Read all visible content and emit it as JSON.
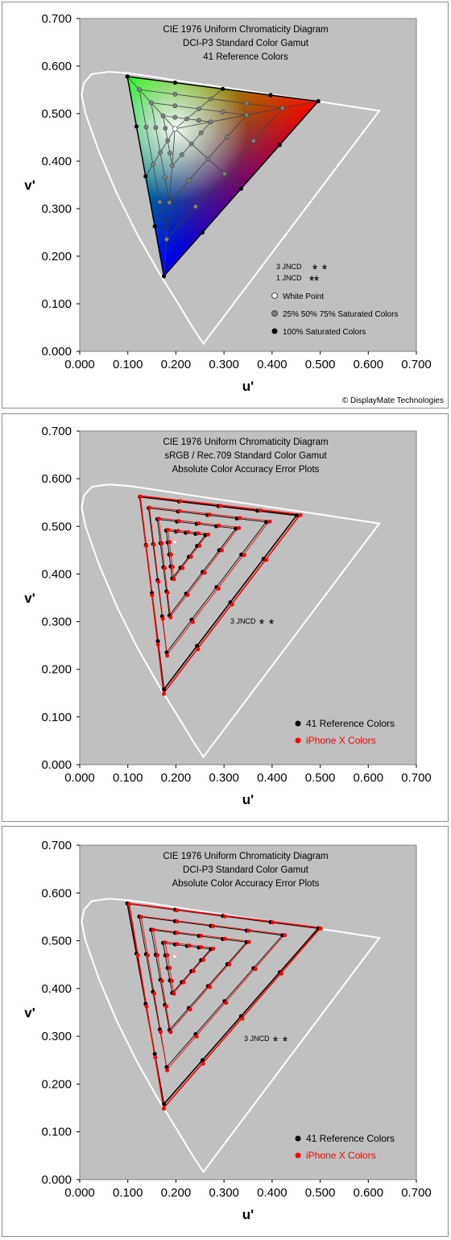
{
  "copyright": "© DisplayMate Technologies",
  "chart_data": [
    {
      "type": "scatter",
      "title": [
        "CIE 1976 Uniform Chromaticity Diagram",
        "DCI-P3 Standard Color Gamut",
        "41 Reference Colors"
      ],
      "xlabel": "u'",
      "ylabel": "v'",
      "xlim": [
        0,
        0.7
      ],
      "ylim": [
        0,
        0.7
      ],
      "xticks": [
        "0.000",
        "0.100",
        "0.200",
        "0.300",
        "0.400",
        "0.500",
        "0.600",
        "0.700"
      ],
      "yticks": [
        "0.000",
        "0.100",
        "0.200",
        "0.300",
        "0.400",
        "0.500",
        "0.600",
        "0.700"
      ],
      "legend": [
        "3 JNCD",
        "1 JNCD",
        "White Point",
        "25% 50% 75% Saturated Colors",
        "100% Saturated Colors"
      ],
      "gamut": {
        "red": [
          0.496,
          0.526
        ],
        "green": [
          0.099,
          0.578
        ],
        "blue": [
          0.175,
          0.158
        ],
        "white": [
          0.198,
          0.468
        ]
      },
      "colors": {
        "background": "#c0c0c0",
        "locus": "#ffffff"
      }
    },
    {
      "type": "scatter",
      "title": [
        "CIE 1976 Uniform Chromaticity Diagram",
        "sRGB / Rec.709 Standard Color Gamut",
        "Absolute Color Accuracy Error Plots"
      ],
      "xlabel": "u'",
      "ylabel": "v'",
      "xlim": [
        0,
        0.7
      ],
      "ylim": [
        0,
        0.7
      ],
      "xticks": [
        "0.000",
        "0.100",
        "0.200",
        "0.300",
        "0.400",
        "0.500",
        "0.600",
        "0.700"
      ],
      "yticks": [
        "0.000",
        "0.100",
        "0.200",
        "0.300",
        "0.400",
        "0.500",
        "0.600",
        "0.700"
      ],
      "annotation": "3 JNCD",
      "legend": [
        "41 Reference Colors",
        "iPhone X Colors"
      ],
      "reference": {
        "red": [
          0.451,
          0.523
        ],
        "green": [
          0.125,
          0.562
        ],
        "blue": [
          0.175,
          0.158
        ],
        "white": [
          0.198,
          0.468
        ]
      },
      "measured": {
        "red": [
          0.456,
          0.525
        ],
        "green": [
          0.123,
          0.564
        ],
        "blue": [
          0.172,
          0.15
        ],
        "white": [
          0.2,
          0.471
        ]
      },
      "colors": {
        "reference": "#000000",
        "measured": "#ff0000"
      }
    },
    {
      "type": "scatter",
      "title": [
        "CIE 1976 Uniform Chromaticity Diagram",
        "DCI-P3 Standard Color Gamut",
        "Absolute Color Accuracy Error Plots"
      ],
      "xlabel": "u'",
      "ylabel": "v'",
      "xlim": [
        0,
        0.7
      ],
      "ylim": [
        0,
        0.7
      ],
      "xticks": [
        "0.000",
        "0.100",
        "0.200",
        "0.300",
        "0.400",
        "0.500",
        "0.600",
        "0.700"
      ],
      "yticks": [
        "0.000",
        "0.100",
        "0.200",
        "0.300",
        "0.400",
        "0.500",
        "0.600",
        "0.700"
      ],
      "annotation": "3 JNCD",
      "legend": [
        "41 Reference Colors",
        "iPhone X Colors"
      ],
      "reference": {
        "red": [
          0.496,
          0.526
        ],
        "green": [
          0.099,
          0.578
        ],
        "blue": [
          0.175,
          0.158
        ],
        "white": [
          0.198,
          0.468
        ]
      },
      "measured": {
        "red": [
          0.498,
          0.527
        ],
        "green": [
          0.1,
          0.578
        ],
        "blue": [
          0.172,
          0.15
        ],
        "white": [
          0.2,
          0.471
        ]
      },
      "colors": {
        "reference": "#000000",
        "measured": "#ff0000"
      }
    }
  ]
}
